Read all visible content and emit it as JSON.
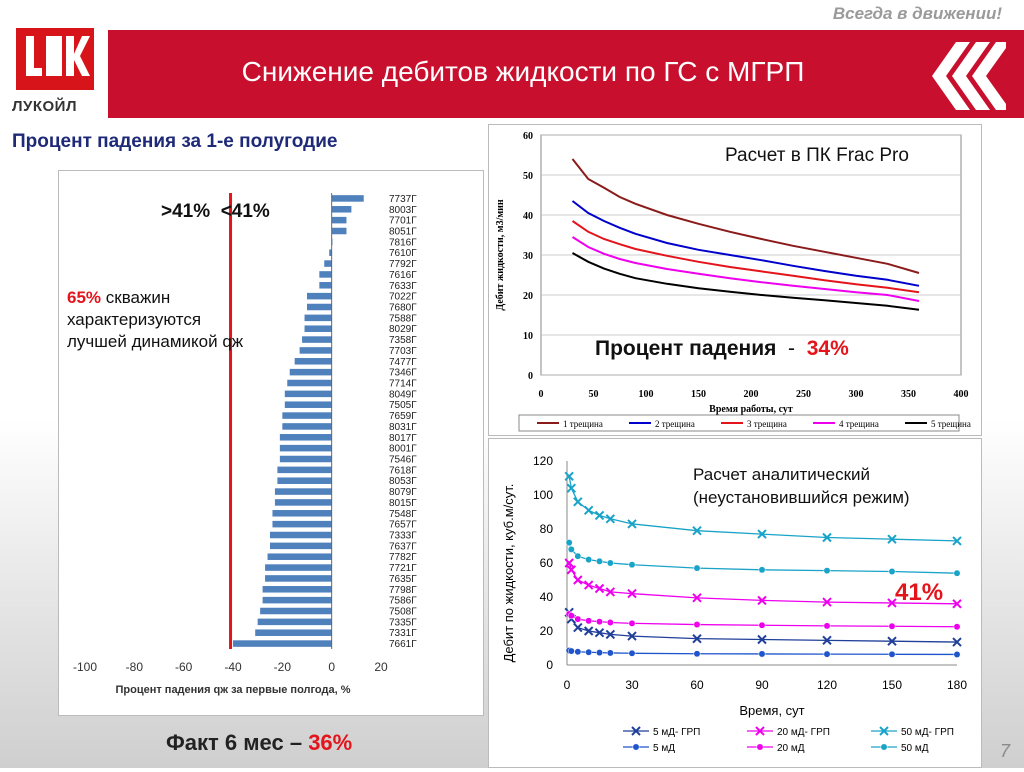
{
  "header": {
    "tagline": "Всегда в движении!",
    "logo_text": "ЛУКОЙЛ",
    "title": "Снижение дебитов жидкости по ГС с МГРП",
    "page_number": "7"
  },
  "left": {
    "title": "Процент падения за 1-е полугодие",
    "annot_gt": ">41%",
    "annot_lt": "<41%",
    "share_pct": "65%",
    "share_text": " скважин характеризуются лучшей динамикой qж",
    "fact_label": "Факт 6 мес – ",
    "fact_value": "36%"
  },
  "top_right": {
    "label": "Расчет в ПК Frac Pro",
    "drop_label": "Процент падения",
    "drop_sep": "-",
    "drop_value": "34%"
  },
  "bottom_right": {
    "label_line1": "Расчет аналитический",
    "label_line2": "(неустановившийся режим)",
    "value": "41%"
  },
  "colors": {
    "brand_red": "#c8102e",
    "accent_red": "#e3141b",
    "bar_blue": "#4f81bd",
    "title_blue": "#1e2a78"
  },
  "chart_data": [
    {
      "type": "bar",
      "orientation": "horizontal",
      "xlabel": "Процент падения qж за первые полгода, %",
      "xlim": [
        -100,
        20
      ],
      "xticks": [
        -100,
        -80,
        -60,
        -40,
        -20,
        0,
        20
      ],
      "reference_line": -41,
      "categories": [
        "7737Г",
        "8003Г",
        "7701Г",
        "8051Г",
        "7816Г",
        "7610Г",
        "7792Г",
        "7616Г",
        "7633Г",
        "7022Г",
        "7680Г",
        "7588Г",
        "8029Г",
        "7358Г",
        "7703Г",
        "7477Г",
        "7346Г",
        "7714Г",
        "8049Г",
        "7505Г",
        "7659Г",
        "8031Г",
        "8017Г",
        "8001Г",
        "7546Г",
        "7618Г",
        "8053Г",
        "8079Г",
        "8015Г",
        "7548Г",
        "7657Г",
        "7333Г",
        "7637Г",
        "7782Г",
        "7721Г",
        "7635Г",
        "7798Г",
        "7586Г",
        "7508Г",
        "7335Г",
        "7331Г",
        "7661Г"
      ],
      "values": [
        13,
        8,
        6,
        6,
        0,
        -1,
        -3,
        -5,
        -5,
        -10,
        -10,
        -11,
        -11,
        -12,
        -13,
        -15,
        -17,
        -18,
        -19,
        -19,
        -20,
        -20,
        -21,
        -21,
        -21,
        -22,
        -22,
        -23,
        -23,
        -24,
        -24,
        -25,
        -25,
        -26,
        -27,
        -27,
        -28,
        -28,
        -29,
        -30,
        -31,
        -40
      ]
    },
    {
      "type": "line",
      "xlabel": "Время работы, сут",
      "ylabel": "Дебит жидкости, м3/мин",
      "xlim": [
        0,
        400
      ],
      "ylim": [
        0,
        60
      ],
      "xticks": [
        0,
        50,
        100,
        150,
        200,
        250,
        300,
        350,
        400
      ],
      "yticks": [
        0,
        10,
        20,
        30,
        40,
        50,
        60
      ],
      "x": [
        30,
        45,
        60,
        75,
        90,
        120,
        150,
        180,
        210,
        240,
        270,
        300,
        330,
        360
      ],
      "series": [
        {
          "name": "1 трещина",
          "color": "#8b1a1a",
          "values": [
            54,
            49,
            46.8,
            44.5,
            42.8,
            40,
            37.8,
            35.8,
            34,
            32.3,
            30.8,
            29.3,
            27.8,
            25.5
          ]
        },
        {
          "name": "2 трещина",
          "color": "#0000cc",
          "values": [
            43.5,
            40.5,
            38.5,
            36.8,
            35.3,
            33,
            31.3,
            30,
            28.7,
            27.3,
            26,
            24.8,
            23.8,
            22.3
          ]
        },
        {
          "name": "3 трещина",
          "color": "#e3141b",
          "values": [
            38.5,
            35.8,
            34,
            32.7,
            31.5,
            29.8,
            28.3,
            27,
            25.9,
            24.8,
            23.7,
            22.7,
            21.8,
            20.7
          ]
        },
        {
          "name": "4 трещина",
          "color": "#ee00ee",
          "values": [
            34.5,
            32,
            30.3,
            29,
            28,
            26.5,
            25.3,
            24.2,
            23.2,
            22.3,
            21.5,
            20.7,
            20,
            18.5
          ]
        },
        {
          "name": "5 трещина",
          "color": "#000000",
          "values": [
            30.5,
            28.3,
            26.6,
            25.3,
            24.2,
            22.8,
            21.7,
            20.8,
            20,
            19.3,
            18.7,
            18,
            17.3,
            16.3
          ]
        }
      ]
    },
    {
      "type": "line",
      "xlabel": "Время, сут",
      "ylabel": "Дебит по жидкости, куб.м/сут.",
      "xlim": [
        0,
        180
      ],
      "ylim": [
        0,
        120
      ],
      "xticks": [
        0,
        30,
        60,
        90,
        120,
        150,
        180
      ],
      "yticks": [
        0,
        20,
        40,
        60,
        80,
        100,
        120
      ],
      "series": [
        {
          "name": "5 мД- ГРП",
          "color": "#1f3f99",
          "marker": "x",
          "x": [
            1,
            2,
            5,
            10,
            15,
            20,
            30,
            60,
            90,
            120,
            150,
            180
          ],
          "values": [
            31,
            27,
            22,
            20,
            19,
            18,
            17,
            15.5,
            15,
            14.5,
            14,
            13.5
          ]
        },
        {
          "name": "20 мД- ГРП",
          "color": "#ee00ee",
          "marker": "x",
          "x": [
            1,
            2,
            5,
            10,
            15,
            20,
            30,
            60,
            90,
            120,
            150,
            180
          ],
          "values": [
            60,
            56,
            50,
            47,
            45,
            43,
            42,
            39.5,
            38,
            37,
            36.5,
            36
          ]
        },
        {
          "name": "50 мД- ГРП",
          "color": "#1aa3c8",
          "marker": "x",
          "x": [
            1,
            2,
            5,
            10,
            15,
            20,
            30,
            60,
            90,
            120,
            150,
            180
          ],
          "values": [
            111,
            104,
            96,
            91,
            88,
            86,
            83,
            79,
            77,
            75,
            74,
            73
          ]
        },
        {
          "name": "5 мД",
          "color": "#1f55cc",
          "marker": "o",
          "x": [
            1,
            2,
            5,
            10,
            15,
            20,
            30,
            60,
            90,
            120,
            150,
            180
          ],
          "values": [
            8.5,
            8.2,
            7.8,
            7.5,
            7.3,
            7.1,
            6.9,
            6.6,
            6.5,
            6.4,
            6.3,
            6.2
          ]
        },
        {
          "name": "20 мД",
          "color": "#ee00ee",
          "marker": "o",
          "x": [
            1,
            2,
            5,
            10,
            15,
            20,
            30,
            60,
            90,
            120,
            150,
            180
          ],
          "values": [
            30,
            29,
            27,
            26,
            25.5,
            25,
            24.5,
            23.8,
            23.4,
            23,
            22.8,
            22.5
          ]
        },
        {
          "name": "50 мД",
          "color": "#1aa3c8",
          "marker": "o",
          "x": [
            1,
            2,
            5,
            10,
            15,
            20,
            30,
            60,
            90,
            120,
            150,
            180
          ],
          "values": [
            72,
            68,
            64,
            62,
            61,
            60,
            59,
            57,
            56,
            55.5,
            55,
            54
          ]
        }
      ]
    }
  ]
}
